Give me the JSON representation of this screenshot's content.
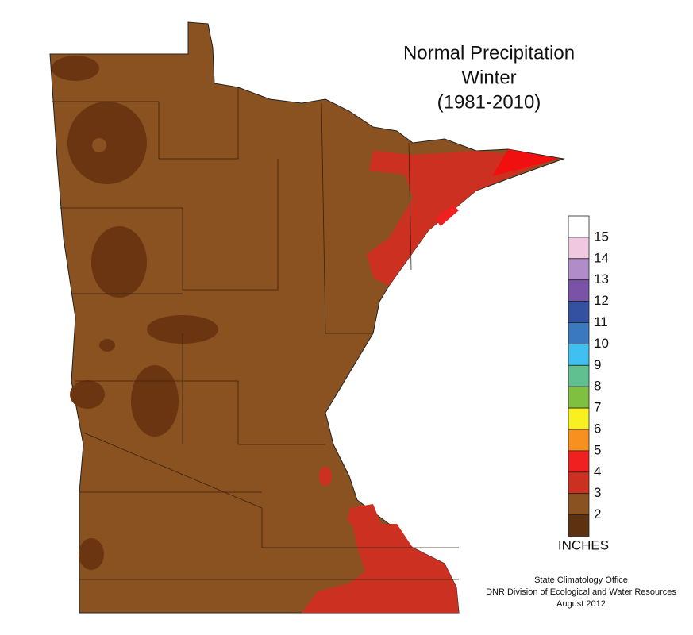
{
  "header": {
    "title_lines": [
      "Normal Precipitation",
      "Winter",
      "(1981-2010)"
    ]
  },
  "legend": {
    "labels": [
      "15",
      "14",
      "13",
      "12",
      "11",
      "10",
      "9",
      "8",
      "7",
      "6",
      "5",
      "4",
      "3",
      "2"
    ],
    "colors": [
      "#ffffff",
      "#f0c8e0",
      "#b08cc8",
      "#7a52a8",
      "#3450a0",
      "#3a78c0",
      "#40c0f0",
      "#60c090",
      "#80c040",
      "#f8f020",
      "#f89020",
      "#f02020",
      "#cc3020",
      "#8a5220",
      "#5e3210"
    ],
    "units": "INCHES"
  },
  "credits": [
    "State Climatology Office",
    "DNR Division of Ecological and Water Resources",
    "August 2012"
  ]
}
